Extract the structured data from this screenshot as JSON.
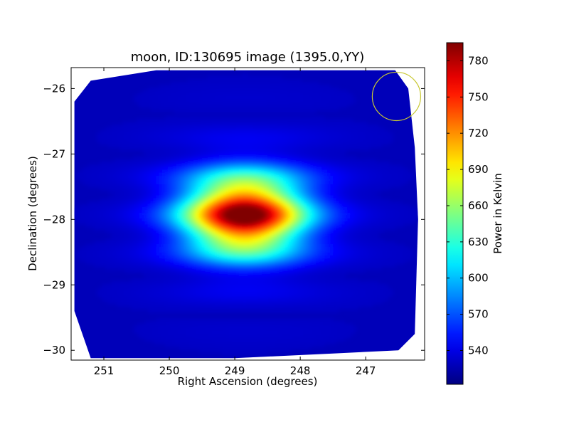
{
  "chart_data": {
    "type": "heatmap",
    "title": "moon, ID:130695 image (1395.0,YY)",
    "xlabel": "Right Ascension (degrees)",
    "ylabel": "Declination (degrees)",
    "colorbar_label": "Power in Kelvin",
    "colormap": "jet",
    "x_reversed": true,
    "xlim": [
      251.5,
      246.1
    ],
    "ylim": [
      -30.15,
      -25.68
    ],
    "x_ticks": [
      {
        "value": 251,
        "label": "251"
      },
      {
        "value": 250,
        "label": "250"
      },
      {
        "value": 249,
        "label": "249"
      },
      {
        "value": 248,
        "label": "248"
      },
      {
        "value": 247,
        "label": "247"
      }
    ],
    "y_ticks": [
      {
        "value": -26,
        "label": "−26"
      },
      {
        "value": -27,
        "label": "−27"
      },
      {
        "value": -28,
        "label": "−28"
      },
      {
        "value": -29,
        "label": "−29"
      },
      {
        "value": -30,
        "label": "−30"
      }
    ],
    "colorbar_range": [
      512,
      795
    ],
    "colorbar_ticks": [
      {
        "value": 540,
        "label": "540"
      },
      {
        "value": 570,
        "label": "570"
      },
      {
        "value": 600,
        "label": "600"
      },
      {
        "value": 630,
        "label": "630"
      },
      {
        "value": 660,
        "label": "660"
      },
      {
        "value": 690,
        "label": "690"
      },
      {
        "value": 720,
        "label": "720"
      },
      {
        "value": 750,
        "label": "750"
      },
      {
        "value": 780,
        "label": "780"
      }
    ],
    "background_level": 528,
    "source": {
      "ra": 248.85,
      "dec": -27.93,
      "peak": 792
    },
    "beam_circle": {
      "ra": 246.53,
      "dec": -26.12,
      "radius_deg": 0.37,
      "color": "#c8c832"
    },
    "footprint": [
      [
        250.2,
        -25.72
      ],
      [
        251.2,
        -25.88
      ],
      [
        251.45,
        -26.2
      ],
      [
        251.45,
        -29.4
      ],
      [
        251.2,
        -30.12
      ],
      [
        249.0,
        -30.12
      ],
      [
        247.5,
        -30.05
      ],
      [
        246.5,
        -30.0
      ],
      [
        246.25,
        -29.75
      ],
      [
        246.2,
        -28.0
      ],
      [
        246.25,
        -26.9
      ],
      [
        246.35,
        -26.0
      ],
      [
        246.55,
        -25.72
      ]
    ]
  }
}
